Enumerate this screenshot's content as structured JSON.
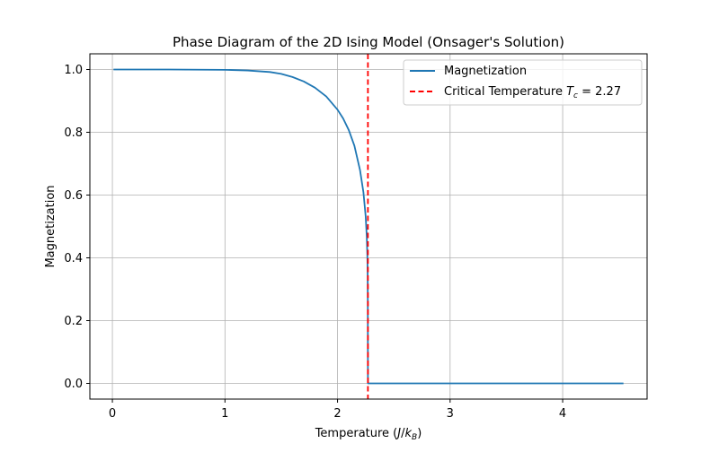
{
  "chart_data": {
    "type": "line",
    "title": "Phase Diagram of the 2D Ising Model (Onsager's Solution)",
    "xlabel_main": "Temperature (",
    "xlabel_unit_J": "J",
    "xlabel_unit_slash": "/",
    "xlabel_unit_k": "k",
    "xlabel_unit_sub": "B",
    "xlabel_close": ")",
    "ylabel": "Magnetization",
    "xlim": [
      -0.2,
      4.75
    ],
    "ylim": [
      -0.05,
      1.05
    ],
    "xticks": [
      0,
      1,
      2,
      3,
      4
    ],
    "xtick_labels": [
      "0",
      "1",
      "2",
      "3",
      "4"
    ],
    "yticks": [
      0.0,
      0.2,
      0.4,
      0.6,
      0.8,
      1.0
    ],
    "ytick_labels": [
      "0.0",
      "0.2",
      "0.4",
      "0.6",
      "0.8",
      "1.0"
    ],
    "grid": true,
    "legend_position": "top-right",
    "series": [
      {
        "name": "Magnetization",
        "color": "#1f77b4",
        "style": "solid",
        "x": [
          0.01,
          0.5,
          1.0,
          1.2,
          1.4,
          1.5,
          1.6,
          1.7,
          1.8,
          1.9,
          2.0,
          2.05,
          2.1,
          2.15,
          2.2,
          2.23,
          2.25,
          2.26,
          2.265,
          2.268,
          2.269,
          2.27,
          2.3,
          2.5,
          3.0,
          3.5,
          4.0,
          4.54
        ],
        "y": [
          1.0,
          1.0,
          0.999,
          0.997,
          0.992,
          0.986,
          0.976,
          0.962,
          0.942,
          0.914,
          0.872,
          0.844,
          0.807,
          0.757,
          0.679,
          0.609,
          0.532,
          0.466,
          0.406,
          0.34,
          0.25,
          0.0,
          0.0,
          0.0,
          0.0,
          0.0,
          0.0,
          0.0
        ]
      }
    ],
    "vline": {
      "name_prefix": "Critical Temperature ",
      "name_T": "T",
      "name_sub": "c",
      "name_suffix": " = 2.27",
      "x": 2.27,
      "color": "#ff0000",
      "style": "dashed"
    }
  }
}
